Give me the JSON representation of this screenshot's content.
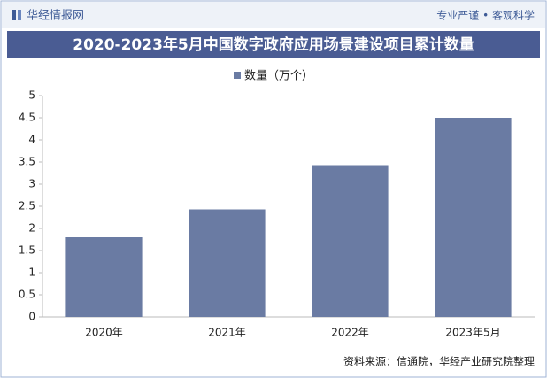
{
  "header": {
    "brand": "华经情报网",
    "slogan": "专业严谨 • 客观科学"
  },
  "chart_data": {
    "type": "bar",
    "title": "2020-2023年5月中国数字政府应用场景建设项目累计数量",
    "series": [
      {
        "name": "数量（万个）",
        "color": "#6a7ba3",
        "values": [
          1.8,
          2.43,
          3.43,
          4.5
        ]
      }
    ],
    "categories": [
      "2020年",
      "2021年",
      "2022年",
      "2023年5月"
    ],
    "ylim": [
      0,
      5
    ],
    "yticks": [
      0,
      0.5,
      1,
      1.5,
      2,
      2.5,
      3,
      3.5,
      4,
      4.5,
      5
    ],
    "grid": false,
    "legend": "top"
  },
  "footer": {
    "source": "资料来源：信通院，华经产业研究院整理"
  }
}
